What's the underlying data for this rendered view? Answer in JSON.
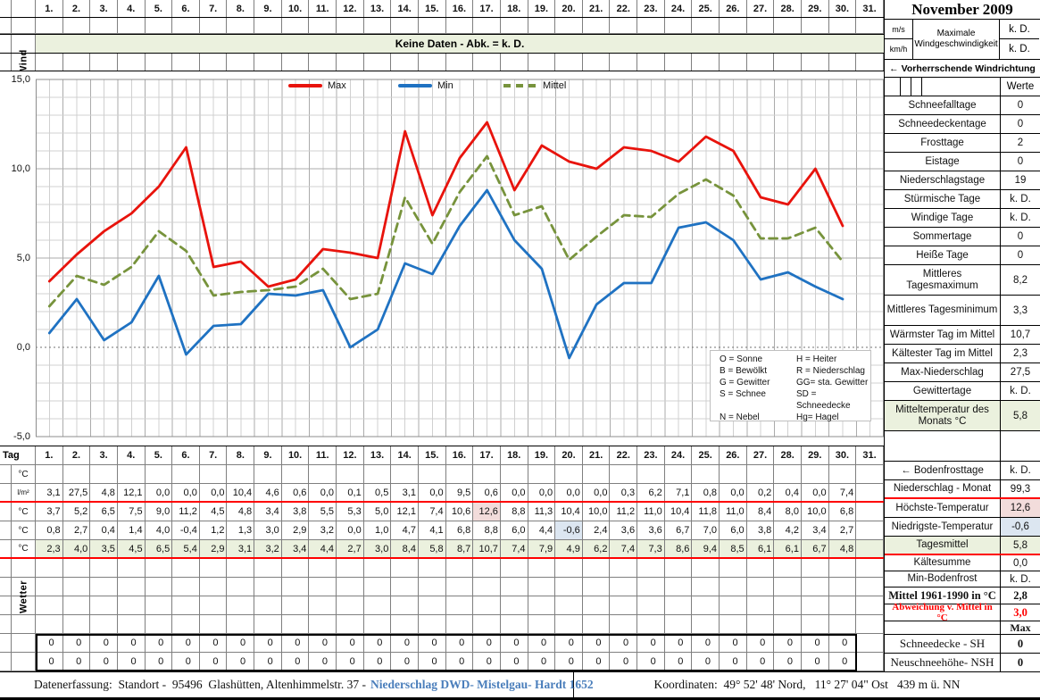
{
  "banner": "Keine Daten - Abk. = k. D.",
  "wind_label": "Wind",
  "days": [
    "1.",
    "2.",
    "3.",
    "4.",
    "5.",
    "6.",
    "7.",
    "8.",
    "9.",
    "10.",
    "11.",
    "12.",
    "13.",
    "14.",
    "15.",
    "16.",
    "17.",
    "18.",
    "19.",
    "20.",
    "21.",
    "22.",
    "23.",
    "24.",
    "25.",
    "26.",
    "27.",
    "28.",
    "29.",
    "30.",
    "31."
  ],
  "chart_data": {
    "type": "line",
    "title": "",
    "xlabel": "Tag",
    "ylabel": "°C",
    "x": [
      1,
      2,
      3,
      4,
      5,
      6,
      7,
      8,
      9,
      10,
      11,
      12,
      13,
      14,
      15,
      16,
      17,
      18,
      19,
      20,
      21,
      22,
      23,
      24,
      25,
      26,
      27,
      28,
      29,
      30
    ],
    "series": [
      {
        "name": "Max",
        "color": "#E8130C",
        "dashed": false,
        "values": [
          3.7,
          5.2,
          6.5,
          7.5,
          9.0,
          11.2,
          4.5,
          4.8,
          3.4,
          3.8,
          5.5,
          5.3,
          5.0,
          12.1,
          7.4,
          10.6,
          12.6,
          8.8,
          11.3,
          10.4,
          10.0,
          11.2,
          11.0,
          10.4,
          11.8,
          11.0,
          8.4,
          8.0,
          10.0,
          6.8
        ]
      },
      {
        "name": "Min",
        "color": "#1F72C2",
        "dashed": false,
        "values": [
          0.8,
          2.7,
          0.4,
          1.4,
          4.0,
          -0.4,
          1.2,
          1.3,
          3.0,
          2.9,
          3.2,
          0.0,
          1.0,
          4.7,
          4.1,
          6.8,
          8.8,
          6.0,
          4.4,
          -0.6,
          2.4,
          3.6,
          3.6,
          6.7,
          7.0,
          6.0,
          3.8,
          4.2,
          3.4,
          2.7
        ]
      },
      {
        "name": "Mittel",
        "color": "#77933C",
        "dashed": true,
        "values": [
          2.3,
          4.0,
          3.5,
          4.5,
          6.5,
          5.4,
          2.9,
          3.1,
          3.2,
          3.4,
          4.4,
          2.7,
          3.0,
          8.4,
          5.8,
          8.7,
          10.7,
          7.4,
          7.9,
          4.9,
          6.2,
          7.4,
          7.3,
          8.6,
          9.4,
          8.5,
          6.1,
          6.1,
          6.7,
          4.8
        ]
      }
    ],
    "ylim": [
      -5,
      15
    ],
    "yticks": {
      "values": [
        15,
        10,
        5,
        0,
        -5
      ],
      "labels": [
        "15,0",
        "10,0",
        "5,0",
        "0,0",
        "-5,0"
      ]
    },
    "grid": true,
    "legend_position": "top-center"
  },
  "abbreviations": [
    [
      "O = Sonne",
      "H = Heiter"
    ],
    [
      "B = Bewölkt",
      "R = Niederschlag"
    ],
    [
      "G = Gewitter",
      "GG= sta. Gewitter"
    ],
    [
      "S = Schnee",
      "SD = Schneedecke"
    ],
    [
      "N = Nebel",
      "Hg= Hagel"
    ]
  ],
  "day_table": {
    "tag_label": "Tag",
    "unit_temp": "°C",
    "unit_precip": "l/m²",
    "niederschlag": [
      3.1,
      27.5,
      4.8,
      12.1,
      0.0,
      0.0,
      0.0,
      10.4,
      4.6,
      0.6,
      0.0,
      0.1,
      0.5,
      3.1,
      0.0,
      9.5,
      0.6,
      0.0,
      0.0,
      0.0,
      0.0,
      0.3,
      6.2,
      7.1,
      0.8,
      0.0,
      0.2,
      0.4,
      0.0,
      7.4
    ],
    "highlight_max_day": 17,
    "highlight_min_day": 20
  },
  "weather_section": {
    "label": "Wetter",
    "empty_rows": 4,
    "zero_rows": [
      {
        "name": "schneedecke-row",
        "value": "0",
        "days": 30
      },
      {
        "name": "neuschneehoehe-row",
        "value": "0",
        "days": 30
      }
    ]
  },
  "sidebar": {
    "title": "November 2009",
    "wind": {
      "unit_top": "m/s",
      "unit_bottom": "km/h",
      "label": "Maximale Windgeschwindigkeit",
      "value_top": "k. D.",
      "value_bottom": "k. D."
    },
    "wind_direction": "←  Vorherrschende Windrichtung",
    "werte_header": "Werte",
    "stats": [
      {
        "label": "Schneefalltage",
        "value": "0"
      },
      {
        "label": "Schneedeckentage",
        "value": "0"
      },
      {
        "label": "Frosttage",
        "value": "2"
      },
      {
        "label": "Eistage",
        "value": "0"
      },
      {
        "label": "Niederschlagstage",
        "value": "19"
      },
      {
        "label": "Stürmische Tage",
        "value": "k. D."
      },
      {
        "label": "Windige Tage",
        "value": "k. D."
      },
      {
        "label": "Sommertage",
        "value": "0"
      },
      {
        "label": "Heiße Tage",
        "value": "0"
      },
      {
        "label": "Mittleres Tagesmaximum",
        "value": "8,2",
        "tall": true
      },
      {
        "label": "Mittleres Tagesminimum",
        "value": "3,3",
        "tall": true
      },
      {
        "label": "Wärmster Tag im Mittel",
        "value": "10,7"
      },
      {
        "label": "Kältester Tag im Mittel",
        "value": "2,3"
      },
      {
        "label": "Max-Niederschlag",
        "value": "27,5"
      },
      {
        "label": "Gewittertage",
        "value": "k. D."
      },
      {
        "label": "Mitteltemperatur des Monats °C",
        "value": "5,8",
        "tall": true,
        "green": true
      },
      {
        "label": "",
        "value": "",
        "spacer": true
      },
      {
        "label": "← Bodenfrosttage",
        "value": "k. D."
      },
      {
        "label": "Niederschlag - Monat",
        "value": "99,3",
        "redline": true
      },
      {
        "label": "Höchste-Temperatur",
        "value": "12,6",
        "value_bg": "#F2DCDB"
      },
      {
        "label": "Niedrigste-Temperatur",
        "value": "-0,6",
        "value_bg": "#DCE6F1"
      },
      {
        "label": "Tagesmittel",
        "value": "5,8",
        "green": true,
        "redline": true
      },
      {
        "label": "Kältesumme",
        "value": "0,0"
      },
      {
        "label": "Min-Bodenfrost",
        "value": "k. D."
      },
      {
        "label": "Mittel 1961-1990 in °C",
        "value": "2,8",
        "serif_bold": true
      },
      {
        "label": "Abweichung v. Mittel in °C",
        "value": "3,0",
        "red_bold": true
      },
      {
        "label": "",
        "value": "Max",
        "max_header": true
      },
      {
        "label": "Schneedecke -  SH",
        "value": "0",
        "serif": true
      },
      {
        "label": "Neuschneehöhe- NSH",
        "value": "0",
        "serif": true
      }
    ]
  },
  "footer": {
    "left_prefix": "Datenerfassung:  Standort -  95496  Glashütten, Altenhimmelstr. 37 -",
    "left_link": "Niederschlag DWD- Mistelgau- Hardt 1652",
    "right": "Koordinaten:  49° 52' 48' Nord,   11° 27' 04\" Ost   439 m ü. NN"
  },
  "colors": {
    "accent_green": "#EBF1DE",
    "highlight_pink": "#F2DCDB",
    "highlight_blue": "#DCE6F1",
    "line_red": "#E8130C",
    "line_blue": "#1F72C2",
    "line_olive": "#77933C",
    "link_blue": "#4A7EBB",
    "alert_red": "#FF0000"
  }
}
